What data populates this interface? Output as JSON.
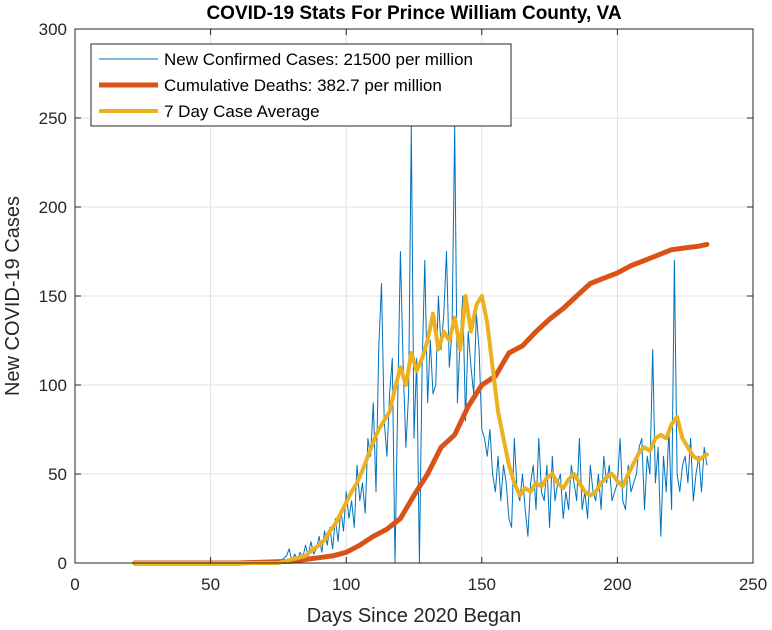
{
  "chart_data": {
    "type": "line",
    "title": "COVID-19 Stats For Prince William County, VA",
    "xlabel": "Days Since 2020 Began",
    "ylabel": "New COVID-19 Cases",
    "xlim": [
      0,
      250
    ],
    "ylim": [
      0,
      300
    ],
    "xticks": [
      0,
      50,
      100,
      150,
      200,
      250
    ],
    "yticks": [
      0,
      50,
      100,
      150,
      200,
      250,
      300
    ],
    "grid": true,
    "legend_position": "top-left",
    "series": [
      {
        "name": "New Confirmed Cases: 21500 per million",
        "color": "#0072BD",
        "x": [
          22,
          30,
          40,
          50,
          60,
          70,
          75,
          78,
          79,
          80,
          81,
          82,
          83,
          84,
          85,
          86,
          87,
          88,
          89,
          90,
          91,
          92,
          93,
          94,
          95,
          96,
          97,
          98,
          99,
          100,
          101,
          102,
          103,
          104,
          105,
          106,
          107,
          108,
          109,
          110,
          111,
          112,
          113,
          114,
          115,
          116,
          117,
          118,
          119,
          120,
          121,
          122,
          123,
          124,
          125,
          126,
          127,
          128,
          129,
          130,
          131,
          132,
          133,
          134,
          135,
          136,
          137,
          138,
          139,
          140,
          141,
          142,
          143,
          144,
          145,
          146,
          147,
          148,
          149,
          150,
          151,
          152,
          153,
          154,
          155,
          156,
          157,
          158,
          159,
          160,
          161,
          162,
          163,
          164,
          165,
          166,
          167,
          168,
          169,
          170,
          171,
          172,
          173,
          174,
          175,
          176,
          177,
          178,
          179,
          180,
          181,
          182,
          183,
          184,
          185,
          186,
          187,
          188,
          189,
          190,
          191,
          192,
          193,
          194,
          195,
          196,
          197,
          198,
          199,
          200,
          201,
          202,
          203,
          204,
          205,
          206,
          207,
          208,
          209,
          210,
          211,
          212,
          213,
          214,
          215,
          216,
          217,
          218,
          219,
          220,
          221,
          222,
          223,
          224,
          225,
          226,
          227,
          228,
          229,
          230,
          231,
          232,
          233
        ],
        "y": [
          0,
          0,
          0,
          0,
          0,
          0,
          0,
          4,
          8,
          1,
          5,
          2,
          6,
          3,
          10,
          4,
          12,
          5,
          8,
          15,
          6,
          18,
          10,
          20,
          8,
          25,
          12,
          30,
          18,
          40,
          25,
          35,
          20,
          55,
          35,
          45,
          28,
          70,
          60,
          90,
          40,
          120,
          157,
          80,
          60,
          95,
          115,
          0,
          90,
          175,
          110,
          65,
          95,
          245,
          70,
          115,
          0,
          110,
          170,
          90,
          125,
          95,
          100,
          150,
          120,
          140,
          175,
          110,
          130,
          245,
          90,
          125,
          150,
          80,
          130,
          110,
          95,
          140,
          120,
          75,
          70,
          60,
          75,
          50,
          40,
          60,
          35,
          55,
          45,
          25,
          20,
          70,
          40,
          35,
          50,
          30,
          15,
          45,
          55,
          30,
          70,
          40,
          35,
          55,
          20,
          60,
          35,
          45,
          50,
          25,
          40,
          30,
          55,
          45,
          35,
          70,
          30,
          40,
          25,
          55,
          40,
          35,
          50,
          30,
          60,
          45,
          55,
          35,
          40,
          45,
          70,
          35,
          30,
          55,
          40,
          45,
          50,
          65,
          70,
          30,
          60,
          50,
          120,
          45,
          65,
          15,
          60,
          40,
          75,
          30,
          170,
          50,
          40,
          55,
          60,
          45,
          70,
          35,
          50,
          60,
          40,
          65,
          55
        ],
        "line_width": 1
      },
      {
        "name": "Cumulative Deaths: 382.7 per million",
        "color": "#D95319",
        "x": [
          22,
          40,
          60,
          80,
          85,
          90,
          95,
          100,
          105,
          110,
          115,
          120,
          125,
          130,
          135,
          140,
          145,
          150,
          155,
          160,
          165,
          170,
          175,
          180,
          185,
          190,
          195,
          200,
          205,
          210,
          215,
          220,
          225,
          230,
          233
        ],
        "y": [
          0,
          0,
          0,
          1,
          2,
          3,
          4,
          6,
          10,
          15,
          19,
          25,
          38,
          50,
          65,
          72,
          88,
          100,
          105,
          118,
          122,
          130,
          137,
          143,
          150,
          157,
          160,
          163,
          167,
          170,
          173,
          176,
          177,
          178,
          179
        ],
        "line_width": 5
      },
      {
        "name": "7 Day Case Average",
        "color": "#EDB120",
        "x": [
          22,
          40,
          60,
          75,
          80,
          85,
          88,
          90,
          92,
          94,
          96,
          98,
          100,
          102,
          104,
          106,
          108,
          110,
          112,
          114,
          116,
          118,
          120,
          122,
          124,
          126,
          128,
          130,
          132,
          134,
          136,
          138,
          140,
          142,
          144,
          146,
          148,
          150,
          152,
          154,
          156,
          158,
          160,
          162,
          164,
          166,
          168,
          170,
          172,
          174,
          176,
          178,
          180,
          182,
          184,
          186,
          188,
          190,
          192,
          194,
          196,
          198,
          200,
          202,
          204,
          206,
          208,
          210,
          212,
          214,
          216,
          218,
          220,
          222,
          224,
          226,
          228,
          230,
          232,
          233
        ],
        "y": [
          0,
          0,
          0,
          0,
          2,
          4,
          8,
          10,
          13,
          18,
          22,
          28,
          34,
          40,
          45,
          52,
          60,
          68,
          75,
          80,
          85,
          98,
          110,
          100,
          118,
          108,
          115,
          125,
          140,
          120,
          130,
          125,
          138,
          120,
          150,
          130,
          145,
          150,
          135,
          110,
          85,
          70,
          55,
          45,
          38,
          42,
          40,
          45,
          43,
          48,
          50,
          45,
          42,
          47,
          50,
          45,
          40,
          38,
          40,
          45,
          48,
          50,
          46,
          43,
          50,
          56,
          62,
          65,
          63,
          70,
          72,
          70,
          78,
          82,
          70,
          65,
          60,
          58,
          60,
          61
        ],
        "line_width": 4
      }
    ]
  }
}
